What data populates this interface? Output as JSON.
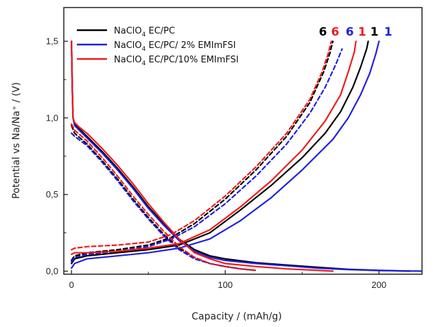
{
  "chart_data": {
    "type": "line",
    "xlabel": "Capacity / (mAh/g)",
    "ylabel": "Potential vs Na/Na⁺ / (V)",
    "xlim": [
      -5,
      228
    ],
    "ylim": [
      -0.02,
      1.72
    ],
    "xticks": [
      0,
      100,
      200
    ],
    "xtick_labels": [
      "0",
      "100",
      "200"
    ],
    "yticks": [
      0.0,
      0.5,
      1.0,
      1.5
    ],
    "ytick_labels": [
      "0,0",
      "0,5",
      "1,0",
      "1,5"
    ],
    "grid": false,
    "legend_position": "top-left",
    "legend": [
      {
        "base": "NaClO",
        "sub": "4",
        "rest": " EC/PC",
        "color": "#000000"
      },
      {
        "base": "NaClO",
        "sub": "4",
        "rest": " EC/PC/ 2% EMImFSI",
        "color": "#1f1fe0"
      },
      {
        "base": "NaClO",
        "sub": "4",
        "rest": " EC/PC/10% EMImFSI",
        "color": "#ee1c1c"
      }
    ],
    "cycle_labels": [
      {
        "text": "6",
        "color": "#000000",
        "x": 163.5
      },
      {
        "text": "6",
        "color": "#ee1c1c",
        "x": 171.5
      },
      {
        "text": "6",
        "color": "#1f1fe0",
        "x": 181
      },
      {
        "text": "1",
        "color": "#ee1c1c",
        "x": 189
      },
      {
        "text": "1",
        "color": "#000000",
        "x": 197
      },
      {
        "text": "1",
        "color": "#1f1fe0",
        "x": 206
      }
    ],
    "series": [
      {
        "electrolyte": "EC/PC",
        "cycle": "1",
        "mode": "discharge",
        "color": "#000000",
        "dashed": false,
        "x": [
          0,
          0.5,
          1,
          2,
          5,
          10,
          20,
          30,
          40,
          50,
          60,
          70,
          80,
          90,
          100,
          120,
          140,
          160,
          180,
          200,
          220
        ],
        "y": [
          1.5,
          1.2,
          1.0,
          0.96,
          0.93,
          0.88,
          0.78,
          0.67,
          0.55,
          0.42,
          0.31,
          0.21,
          0.14,
          0.1,
          0.08,
          0.055,
          0.04,
          0.025,
          0.012,
          0.005,
          0.0
        ]
      },
      {
        "electrolyte": "EC/PC",
        "cycle": "1",
        "mode": "charge",
        "color": "#000000",
        "dashed": false,
        "x": [
          0,
          2,
          10,
          30,
          50,
          70,
          90,
          110,
          130,
          150,
          165,
          175,
          183,
          188,
          192,
          193
        ],
        "y": [
          0.05,
          0.08,
          0.1,
          0.12,
          0.14,
          0.17,
          0.25,
          0.4,
          0.56,
          0.74,
          0.9,
          1.04,
          1.2,
          1.33,
          1.45,
          1.5
        ]
      },
      {
        "electrolyte": "EC/PC",
        "cycle": "6",
        "mode": "discharge",
        "color": "#000000",
        "dashed": true,
        "x": [
          0,
          2,
          10,
          20,
          30,
          40,
          50,
          60,
          70,
          80,
          90,
          100,
          110,
          120
        ],
        "y": [
          0.95,
          0.9,
          0.83,
          0.72,
          0.6,
          0.47,
          0.35,
          0.24,
          0.15,
          0.09,
          0.05,
          0.03,
          0.015,
          0.005
        ]
      },
      {
        "electrolyte": "EC/PC",
        "cycle": "6",
        "mode": "charge",
        "color": "#000000",
        "dashed": true,
        "x": [
          0,
          2,
          10,
          30,
          50,
          65,
          80,
          100,
          120,
          140,
          155,
          164,
          168,
          170
        ],
        "y": [
          0.07,
          0.1,
          0.12,
          0.14,
          0.17,
          0.22,
          0.31,
          0.47,
          0.66,
          0.88,
          1.1,
          1.3,
          1.42,
          1.5
        ]
      },
      {
        "electrolyte": "EC/PC/ 2% EMImFSI",
        "cycle": "1",
        "mode": "discharge",
        "color": "#1f1fe0",
        "dashed": false,
        "x": [
          0,
          0.5,
          1,
          2,
          5,
          10,
          20,
          30,
          40,
          50,
          60,
          70,
          80,
          90,
          100,
          120,
          140,
          160,
          180,
          200,
          228
        ],
        "y": [
          1.5,
          1.2,
          1.0,
          0.95,
          0.92,
          0.87,
          0.77,
          0.66,
          0.54,
          0.41,
          0.3,
          0.2,
          0.13,
          0.09,
          0.07,
          0.05,
          0.035,
          0.02,
          0.01,
          0.004,
          0.0
        ]
      },
      {
        "electrolyte": "EC/PC/ 2% EMImFSI",
        "cycle": "1",
        "mode": "charge",
        "color": "#1f1fe0",
        "dashed": false,
        "x": [
          0,
          2,
          10,
          30,
          50,
          70,
          90,
          110,
          130,
          150,
          170,
          180,
          188,
          194,
          198,
          200
        ],
        "y": [
          0.02,
          0.05,
          0.08,
          0.1,
          0.12,
          0.15,
          0.21,
          0.33,
          0.48,
          0.66,
          0.86,
          1.0,
          1.15,
          1.29,
          1.42,
          1.5
        ]
      },
      {
        "electrolyte": "EC/PC/ 2% EMImFSI",
        "cycle": "6",
        "mode": "discharge",
        "color": "#1f1fe0",
        "dashed": true,
        "x": [
          0,
          2,
          10,
          20,
          30,
          40,
          50,
          60,
          70,
          80,
          90,
          100,
          110,
          120
        ],
        "y": [
          0.9,
          0.88,
          0.82,
          0.71,
          0.59,
          0.46,
          0.34,
          0.23,
          0.14,
          0.08,
          0.05,
          0.03,
          0.015,
          0.005
        ]
      },
      {
        "electrolyte": "EC/PC/ 2% EMImFSI",
        "cycle": "6",
        "mode": "charge",
        "color": "#1f1fe0",
        "dashed": true,
        "x": [
          0,
          2,
          10,
          30,
          50,
          65,
          80,
          100,
          120,
          140,
          155,
          165,
          172,
          176
        ],
        "y": [
          0.06,
          0.09,
          0.11,
          0.13,
          0.16,
          0.21,
          0.29,
          0.44,
          0.62,
          0.83,
          1.03,
          1.2,
          1.35,
          1.45
        ]
      },
      {
        "electrolyte": "EC/PC/10% EMImFSI",
        "cycle": "1",
        "mode": "discharge",
        "color": "#ee1c1c",
        "dashed": false,
        "x": [
          0,
          0.5,
          1,
          2,
          5,
          10,
          20,
          30,
          40,
          50,
          60,
          70,
          80,
          90,
          100,
          120,
          140,
          160,
          170
        ],
        "y": [
          1.5,
          1.2,
          1.0,
          0.97,
          0.94,
          0.9,
          0.8,
          0.69,
          0.57,
          0.44,
          0.32,
          0.21,
          0.12,
          0.08,
          0.05,
          0.03,
          0.015,
          0.005,
          0.0
        ]
      },
      {
        "electrolyte": "EC/PC/10% EMImFSI",
        "cycle": "1",
        "mode": "charge",
        "color": "#ee1c1c",
        "dashed": false,
        "x": [
          0,
          2,
          10,
          30,
          50,
          70,
          90,
          110,
          130,
          150,
          165,
          175,
          180,
          184,
          185
        ],
        "y": [
          0.11,
          0.12,
          0.12,
          0.13,
          0.15,
          0.18,
          0.27,
          0.42,
          0.59,
          0.79,
          0.98,
          1.15,
          1.3,
          1.43,
          1.5
        ]
      },
      {
        "electrolyte": "EC/PC/10% EMImFSI",
        "cycle": "6",
        "mode": "discharge",
        "color": "#ee1c1c",
        "dashed": true,
        "x": [
          0,
          2,
          10,
          20,
          30,
          40,
          50,
          60,
          70,
          80,
          90,
          100,
          110,
          120
        ],
        "y": [
          0.96,
          0.92,
          0.85,
          0.74,
          0.62,
          0.49,
          0.37,
          0.26,
          0.16,
          0.09,
          0.05,
          0.03,
          0.015,
          0.005
        ]
      },
      {
        "electrolyte": "EC/PC/10% EMImFSI",
        "cycle": "6",
        "mode": "charge",
        "color": "#ee1c1c",
        "dashed": true,
        "x": [
          0,
          2,
          10,
          30,
          50,
          65,
          80,
          100,
          120,
          140,
          155,
          163,
          167,
          169
        ],
        "y": [
          0.14,
          0.15,
          0.16,
          0.17,
          0.19,
          0.24,
          0.33,
          0.49,
          0.68,
          0.9,
          1.12,
          1.3,
          1.42,
          1.5
        ]
      }
    ]
  }
}
